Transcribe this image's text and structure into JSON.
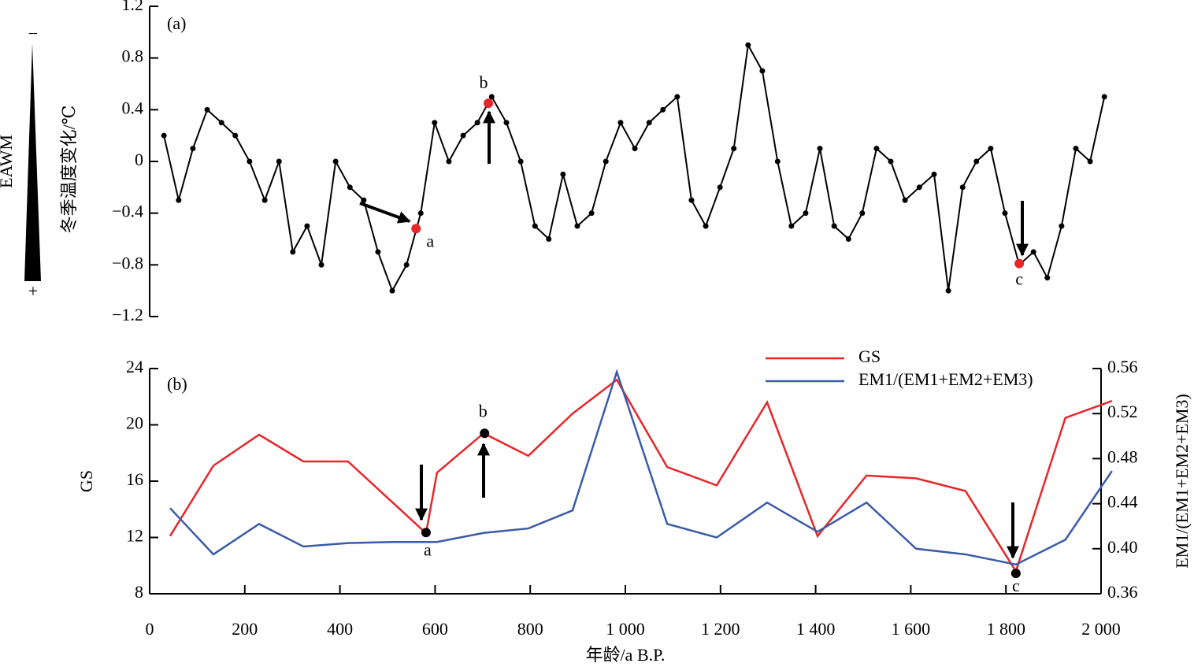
{
  "chart_data": [
    {
      "type": "line",
      "panel_label": "(a)",
      "y_label": "冬季温度变化/℃",
      "side_label": "EAWM",
      "side_top": "−",
      "side_bottom": "+",
      "color": "#000000",
      "xlim": [
        0,
        2000
      ],
      "ylim": [
        -1.2,
        1.2
      ],
      "yticks": [
        1.2,
        0.8,
        0.4,
        0,
        {
          "value": -0.4,
          "label": "−0.4"
        },
        {
          "value": -0.8,
          "label": "−0.8"
        },
        {
          "value": -1.2,
          "label": "−1.2"
        }
      ],
      "x": [
        30,
        61,
        91,
        121,
        151,
        180,
        210,
        242,
        272,
        301,
        331,
        361,
        391,
        421,
        450,
        480,
        510,
        540,
        570,
        599,
        629,
        659,
        689,
        719,
        750,
        780,
        810,
        839,
        869,
        899,
        929,
        959,
        990,
        1020,
        1050,
        1079,
        1109,
        1139,
        1169,
        1199,
        1228,
        1258,
        1288,
        1320,
        1349,
        1379,
        1409,
        1439,
        1469,
        1498,
        1528,
        1558,
        1588,
        1618,
        1649,
        1679,
        1709,
        1738,
        1768,
        1798,
        1828,
        1858,
        1887,
        1917,
        1947,
        1977,
        2007
      ],
      "values": [
        0.2,
        -0.3,
        0.1,
        0.4,
        0.3,
        0.2,
        0,
        -0.3,
        0,
        -0.7,
        -0.5,
        -0.8,
        0,
        -0.2,
        -0.3,
        -0.7,
        -1.0,
        -0.8,
        -0.4,
        0.3,
        0,
        0.2,
        0.3,
        0.5,
        0.3,
        0,
        -0.5,
        -0.6,
        -0.1,
        -0.5,
        -0.4,
        0,
        0.3,
        0.1,
        0.3,
        0.4,
        0.5,
        -0.3,
        -0.5,
        -0.2,
        0.1,
        0.9,
        0.7,
        0,
        -0.5,
        -0.4,
        0.1,
        -0.5,
        -0.6,
        -0.4,
        0.1,
        0,
        -0.3,
        -0.2,
        -0.1,
        -1.0,
        -0.2,
        0,
        0.1,
        -0.4,
        -0.8,
        -0.7,
        -0.9,
        -0.5,
        0.1,
        0,
        0.5
      ],
      "points_color": "#e8262a",
      "points": [
        {
          "label": "a",
          "x": 560,
          "y": -0.52
        },
        {
          "label": "b",
          "x": 712,
          "y": 0.45
        },
        {
          "label": "c",
          "x": 1828,
          "y": -0.79
        }
      ]
    },
    {
      "type": "line",
      "panel_label": "(b)",
      "x_label": "年龄/a B.P.",
      "y_label": "GS",
      "y2_label": "EM1/(EM1+EM2+EM3)",
      "xlim": [
        0,
        2000
      ],
      "ylim": [
        8,
        24
      ],
      "y2lim": [
        0.36,
        0.56
      ],
      "xticks": [
        0,
        200,
        400,
        600,
        800,
        {
          "value": 1000,
          "label": "1 000"
        },
        {
          "value": 1200,
          "label": "1 200"
        },
        {
          "value": 1400,
          "label": "1 400"
        },
        {
          "value": 1600,
          "label": "1 600"
        },
        {
          "value": 1800,
          "label": "1 800"
        },
        {
          "value": 2000,
          "label": "2 000"
        }
      ],
      "yticks": [
        24,
        20,
        16,
        12,
        8
      ],
      "y2ticks": [
        0.56,
        0.52,
        0.48,
        0.44,
        {
          "value": 0.4,
          "label": "0.40"
        },
        0.36
      ],
      "series": [
        {
          "name": "GS",
          "color": "#e8262a",
          "x": [
            43,
            134,
            230,
            323,
            417,
            581,
            604,
            702,
            796,
            889,
            982,
            1088,
            1192,
            1298,
            1404,
            1507,
            1611,
            1715,
            1821,
            1925,
            2023
          ],
          "values": [
            12.1,
            17.1,
            19.3,
            17.4,
            17.4,
            12.3,
            16.6,
            19.4,
            17.8,
            20.8,
            23.2,
            17.0,
            15.7,
            21.6,
            12.1,
            16.4,
            16.2,
            15.3,
            9.6,
            20.5,
            21.7
          ]
        },
        {
          "name": "EM1/(EM1+EM2+EM3)",
          "color": "#3a5ba8",
          "axis": "y2",
          "x": [
            43,
            134,
            230,
            323,
            417,
            510,
            604,
            702,
            796,
            889,
            982,
            1088,
            1192,
            1298,
            1404,
            1507,
            1611,
            1715,
            1821,
            1925,
            2023
          ],
          "values": [
            0.436,
            0.395,
            0.422,
            0.402,
            0.405,
            0.406,
            0.406,
            0.414,
            0.418,
            0.434,
            0.557,
            0.422,
            0.41,
            0.441,
            0.415,
            0.441,
            0.4,
            0.395,
            0.386,
            0.408,
            0.469
          ]
        }
      ],
      "points_color": "#000000",
      "points": [
        {
          "label": "a",
          "x": 581,
          "y": 12.35
        },
        {
          "label": "b",
          "x": 704,
          "y": 19.4
        },
        {
          "label": "c",
          "x": 1821,
          "y": 9.45
        }
      ]
    }
  ]
}
